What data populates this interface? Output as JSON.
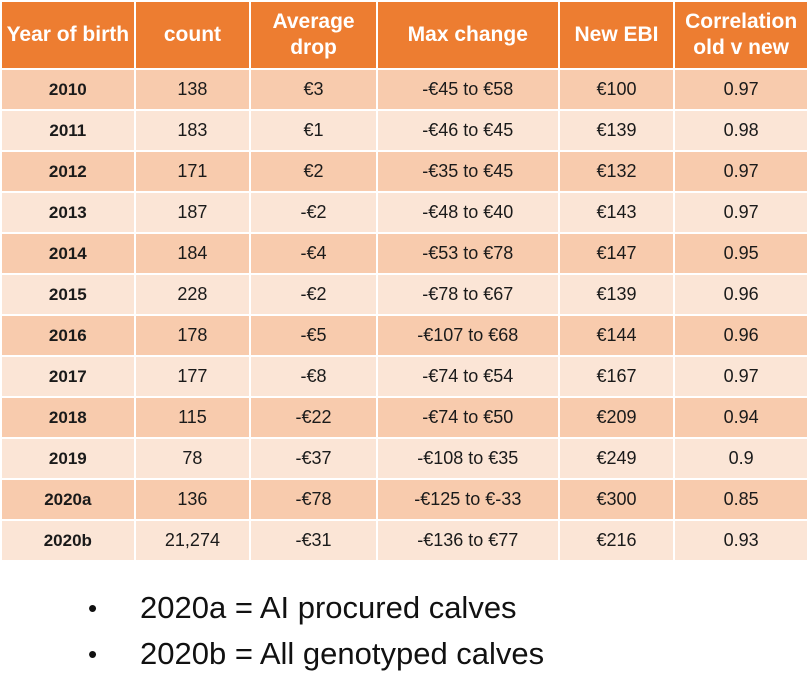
{
  "table": {
    "headers": [
      "Year of birth",
      "count",
      "Average drop",
      "Max change",
      "New EBI",
      "Correlation old v new"
    ],
    "rows": [
      [
        "2010",
        "138",
        "€3",
        "-€45 to €58",
        "€100",
        "0.97"
      ],
      [
        "2011",
        "183",
        "€1",
        "-€46 to €45",
        "€139",
        "0.98"
      ],
      [
        "2012",
        "171",
        "€2",
        "-€35 to €45",
        "€132",
        "0.97"
      ],
      [
        "2013",
        "187",
        "-€2",
        "-€48 to €40",
        "€143",
        "0.97"
      ],
      [
        "2014",
        "184",
        "-€4",
        "-€53 to €78",
        "€147",
        "0.95"
      ],
      [
        "2015",
        "228",
        "-€2",
        "-€78 to €67",
        "€139",
        "0.96"
      ],
      [
        "2016",
        "178",
        "-€5",
        "-€107 to €68",
        "€144",
        "0.96"
      ],
      [
        "2017",
        "177",
        "-€8",
        "-€74 to €54",
        "€167",
        "0.97"
      ],
      [
        "2018",
        "115",
        "-€22",
        "-€74 to €50",
        "€209",
        "0.94"
      ],
      [
        "2019",
        "78",
        "-€37",
        "-€108 to €35",
        "€249",
        "0.9"
      ],
      [
        "2020a",
        "136",
        "-€78",
        "-€125 to €-33",
        "€300",
        "0.85"
      ],
      [
        "2020b",
        "21,274",
        "-€31",
        "-€136 to €77",
        "€216",
        "0.93"
      ]
    ]
  },
  "notes": [
    "2020a = AI procured calves",
    "2020b = All genotyped calves"
  ],
  "colors": {
    "header": "#ed7d31",
    "row_dark": "#f8cbad",
    "row_light": "#fbe5d6"
  }
}
